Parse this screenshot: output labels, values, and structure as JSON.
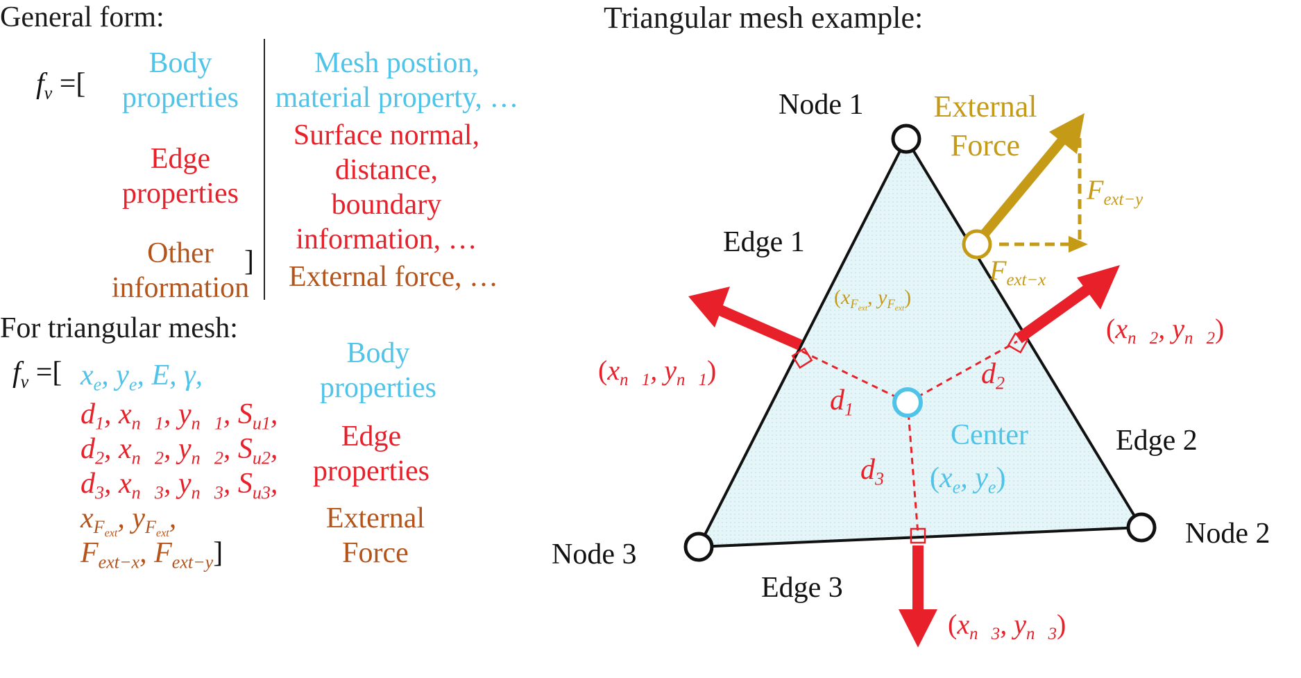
{
  "general": {
    "heading": "General form:",
    "fv_open": "=[",
    "close": "]",
    "body_line1": "Body",
    "body_line2": "properties",
    "body_desc1": "Mesh postion,",
    "body_desc2": "material property, …",
    "edge_line1": "Edge",
    "edge_line2": "properties",
    "edge_desc1": "Surface normal,",
    "edge_desc2": "distance,",
    "edge_desc3": "boundary",
    "edge_desc4": "information, …",
    "other_line1": "Other",
    "other_line2": "information",
    "other_desc": "External force, …"
  },
  "triangular": {
    "heading": "For triangular mesh:",
    "fv_open": "=[",
    "body_label1": "Body",
    "body_label2": "properties",
    "edge_label1": "Edge",
    "edge_label2": "properties",
    "force_label1": "External",
    "force_label2": "Force"
  },
  "example": {
    "heading": "Triangular mesh example:",
    "node1": "Node 1",
    "node2": "Node 2",
    "node3": "Node 3",
    "edge1": "Edge 1",
    "edge2": "Edge 2",
    "edge3": "Edge 3",
    "center": "Center",
    "external_force1": "External",
    "external_force2": "Force"
  },
  "colors": {
    "body": "#4fc3e8",
    "edge": "#e8202a",
    "other": "#b5541a",
    "force": "#c49a17",
    "mesh_fill": "#e2f4f7"
  }
}
